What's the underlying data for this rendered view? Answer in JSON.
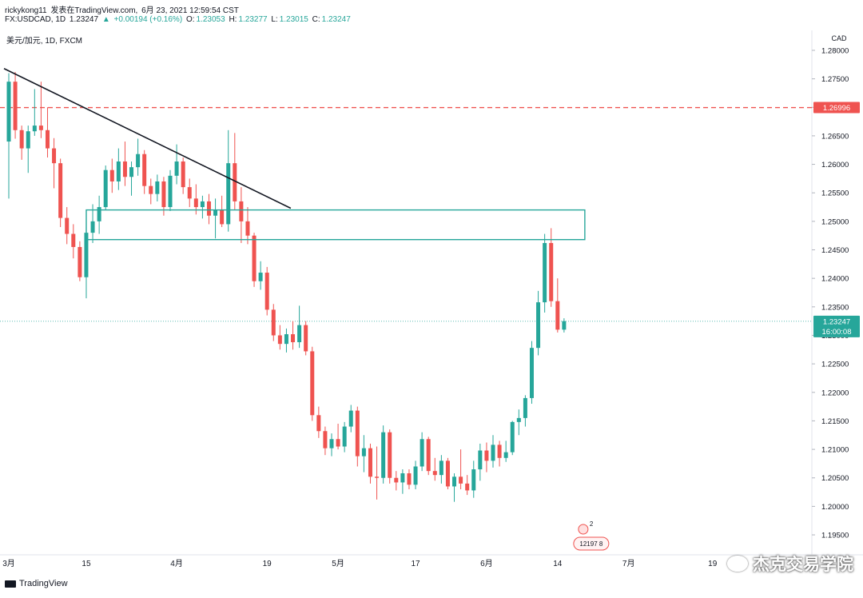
{
  "header": {
    "author": "rickykong11",
    "published_on": "发表在TradingView.com,",
    "date": "6月 23, 2021 12:59:54 CST"
  },
  "ohlc": {
    "symbol": "FX:USDCAD, 1D",
    "last": "1.23247",
    "arrow": "▲",
    "change": "+0.00194 (+0.16%)",
    "o_label": "O:",
    "o": "1.23053",
    "h_label": "H:",
    "h": "1.23277",
    "l_label": "L:",
    "l": "1.23015",
    "c_label": "C:",
    "c": "1.23247"
  },
  "legend": {
    "name": "美元/加元, 1D, FXCM"
  },
  "bottom": {
    "tradingview_logo": "TradingView",
    "brand_watermark": "杰克交易学院"
  },
  "colors": {
    "up": "#26a69a",
    "down": "#ef5350",
    "resistance_line": "#ef5350",
    "zone_border": "#26a69a",
    "trendline": "#131722"
  },
  "chart_data": {
    "type": "candlestick",
    "currency": "CAD",
    "y_range": [
      1.1915,
      1.2835
    ],
    "y_ticks": [
      "1.28000",
      "1.27500",
      "1.27000",
      "1.26500",
      "1.26000",
      "1.25500",
      "1.25000",
      "1.24500",
      "1.24000",
      "1.23500",
      "1.23000",
      "1.22500",
      "1.22000",
      "1.21500",
      "1.21000",
      "1.20500",
      "1.20000",
      "1.19500"
    ],
    "x_ticks": [
      {
        "index": 0,
        "label": "3月"
      },
      {
        "index": 12,
        "label": "15"
      },
      {
        "index": 26,
        "label": "4月"
      },
      {
        "index": 40,
        "label": "19"
      },
      {
        "index": 51,
        "label": "5月"
      },
      {
        "index": 63,
        "label": "17"
      },
      {
        "index": 74,
        "label": "6月"
      },
      {
        "index": 85,
        "label": "14"
      },
      {
        "index": 96,
        "label": "7月"
      },
      {
        "index": 109,
        "label": "19"
      }
    ],
    "candles": [
      {
        "o": 1.264,
        "h": 1.276,
        "l": 1.254,
        "c": 1.2745
      },
      {
        "o": 1.2745,
        "h": 1.2762,
        "l": 1.2645,
        "c": 1.266
      },
      {
        "o": 1.266,
        "h": 1.2668,
        "l": 1.2608,
        "c": 1.2628
      },
      {
        "o": 1.2628,
        "h": 1.2668,
        "l": 1.2585,
        "c": 1.2658
      },
      {
        "o": 1.2658,
        "h": 1.2732,
        "l": 1.265,
        "c": 1.2668
      },
      {
        "o": 1.2668,
        "h": 1.2745,
        "l": 1.2646,
        "c": 1.266
      },
      {
        "o": 1.266,
        "h": 1.27,
        "l": 1.2612,
        "c": 1.2628
      },
      {
        "o": 1.2628,
        "h": 1.2646,
        "l": 1.2558,
        "c": 1.2602
      },
      {
        "o": 1.2602,
        "h": 1.261,
        "l": 1.249,
        "c": 1.2506
      },
      {
        "o": 1.2506,
        "h": 1.2525,
        "l": 1.246,
        "c": 1.2478
      },
      {
        "o": 1.2478,
        "h": 1.2495,
        "l": 1.2435,
        "c": 1.2455
      },
      {
        "o": 1.2455,
        "h": 1.2465,
        "l": 1.2395,
        "c": 1.2402
      },
      {
        "o": 1.2402,
        "h": 1.249,
        "l": 1.2365,
        "c": 1.248
      },
      {
        "o": 1.248,
        "h": 1.253,
        "l": 1.2462,
        "c": 1.25
      },
      {
        "o": 1.25,
        "h": 1.2545,
        "l": 1.2478,
        "c": 1.2525
      },
      {
        "o": 1.2525,
        "h": 1.2598,
        "l": 1.252,
        "c": 1.259
      },
      {
        "o": 1.259,
        "h": 1.261,
        "l": 1.255,
        "c": 1.257
      },
      {
        "o": 1.257,
        "h": 1.2628,
        "l": 1.2555,
        "c": 1.2605
      },
      {
        "o": 1.2605,
        "h": 1.264,
        "l": 1.2562,
        "c": 1.2578
      },
      {
        "o": 1.2578,
        "h": 1.2605,
        "l": 1.2545,
        "c": 1.2595
      },
      {
        "o": 1.2595,
        "h": 1.2645,
        "l": 1.258,
        "c": 1.2618
      },
      {
        "o": 1.2618,
        "h": 1.2625,
        "l": 1.2548,
        "c": 1.2562
      },
      {
        "o": 1.2562,
        "h": 1.2575,
        "l": 1.253,
        "c": 1.2548
      },
      {
        "o": 1.2548,
        "h": 1.2582,
        "l": 1.2535,
        "c": 1.257
      },
      {
        "o": 1.257,
        "h": 1.2578,
        "l": 1.251,
        "c": 1.2525
      },
      {
        "o": 1.2525,
        "h": 1.259,
        "l": 1.2518,
        "c": 1.258
      },
      {
        "o": 1.258,
        "h": 1.2635,
        "l": 1.2565,
        "c": 1.2605
      },
      {
        "o": 1.2605,
        "h": 1.2612,
        "l": 1.2548,
        "c": 1.256
      },
      {
        "o": 1.256,
        "h": 1.2575,
        "l": 1.2525,
        "c": 1.254
      },
      {
        "o": 1.254,
        "h": 1.2565,
        "l": 1.2512,
        "c": 1.2525
      },
      {
        "o": 1.2525,
        "h": 1.2545,
        "l": 1.2505,
        "c": 1.2535
      },
      {
        "o": 1.2535,
        "h": 1.2548,
        "l": 1.2495,
        "c": 1.251
      },
      {
        "o": 1.251,
        "h": 1.254,
        "l": 1.247,
        "c": 1.252
      },
      {
        "o": 1.252,
        "h": 1.2545,
        "l": 1.249,
        "c": 1.2495
      },
      {
        "o": 1.2495,
        "h": 1.266,
        "l": 1.2482,
        "c": 1.2602
      },
      {
        "o": 1.2602,
        "h": 1.2655,
        "l": 1.252,
        "c": 1.2535
      },
      {
        "o": 1.2535,
        "h": 1.256,
        "l": 1.2462,
        "c": 1.25
      },
      {
        "o": 1.25,
        "h": 1.2525,
        "l": 1.246,
        "c": 1.2475
      },
      {
        "o": 1.2475,
        "h": 1.248,
        "l": 1.2385,
        "c": 1.2395
      },
      {
        "o": 1.2395,
        "h": 1.243,
        "l": 1.238,
        "c": 1.241
      },
      {
        "o": 1.241,
        "h": 1.242,
        "l": 1.2335,
        "c": 1.2345
      },
      {
        "o": 1.2345,
        "h": 1.2355,
        "l": 1.229,
        "c": 1.23
      },
      {
        "o": 1.23,
        "h": 1.2318,
        "l": 1.2275,
        "c": 1.2285
      },
      {
        "o": 1.2285,
        "h": 1.2312,
        "l": 1.227,
        "c": 1.2302
      },
      {
        "o": 1.2302,
        "h": 1.2325,
        "l": 1.2275,
        "c": 1.2288
      },
      {
        "o": 1.2288,
        "h": 1.2352,
        "l": 1.2278,
        "c": 1.2318
      },
      {
        "o": 1.2318,
        "h": 1.2325,
        "l": 1.2265,
        "c": 1.2272
      },
      {
        "o": 1.2272,
        "h": 1.228,
        "l": 1.215,
        "c": 1.216
      },
      {
        "o": 1.216,
        "h": 1.2175,
        "l": 1.212,
        "c": 1.2132
      },
      {
        "o": 1.2132,
        "h": 1.214,
        "l": 1.209,
        "c": 1.2102
      },
      {
        "o": 1.2102,
        "h": 1.2128,
        "l": 1.2088,
        "c": 1.2118
      },
      {
        "o": 1.2118,
        "h": 1.2145,
        "l": 1.21,
        "c": 1.2105
      },
      {
        "o": 1.2105,
        "h": 1.2148,
        "l": 1.2095,
        "c": 1.214
      },
      {
        "o": 1.214,
        "h": 1.2178,
        "l": 1.213,
        "c": 1.2168
      },
      {
        "o": 1.2168,
        "h": 1.2175,
        "l": 1.207,
        "c": 1.2088
      },
      {
        "o": 1.2088,
        "h": 1.2125,
        "l": 1.206,
        "c": 1.2102
      },
      {
        "o": 1.2102,
        "h": 1.211,
        "l": 1.204,
        "c": 1.2052
      },
      {
        "o": 1.2052,
        "h": 1.2105,
        "l": 1.2012,
        "c": 1.205
      },
      {
        "o": 1.205,
        "h": 1.2142,
        "l": 1.204,
        "c": 1.213
      },
      {
        "o": 1.213,
        "h": 1.2135,
        "l": 1.204,
        "c": 1.205
      },
      {
        "o": 1.205,
        "h": 1.2062,
        "l": 1.2028,
        "c": 1.2042
      },
      {
        "o": 1.2042,
        "h": 1.2065,
        "l": 1.2022,
        "c": 1.2058
      },
      {
        "o": 1.2058,
        "h": 1.2065,
        "l": 1.203,
        "c": 1.2038
      },
      {
        "o": 1.2038,
        "h": 1.208,
        "l": 1.203,
        "c": 1.207
      },
      {
        "o": 1.207,
        "h": 1.213,
        "l": 1.2062,
        "c": 1.2118
      },
      {
        "o": 1.2118,
        "h": 1.2122,
        "l": 1.2055,
        "c": 1.2062
      },
      {
        "o": 1.2062,
        "h": 1.2085,
        "l": 1.2045,
        "c": 1.2055
      },
      {
        "o": 1.2055,
        "h": 1.209,
        "l": 1.204,
        "c": 1.208
      },
      {
        "o": 1.208,
        "h": 1.2085,
        "l": 1.203,
        "c": 1.2035
      },
      {
        "o": 1.2035,
        "h": 1.2058,
        "l": 1.2008,
        "c": 1.2052
      },
      {
        "o": 1.2052,
        "h": 1.21,
        "l": 1.203,
        "c": 1.204
      },
      {
        "o": 1.204,
        "h": 1.2055,
        "l": 1.202,
        "c": 1.2028
      },
      {
        "o": 1.2028,
        "h": 1.208,
        "l": 1.2015,
        "c": 1.2065
      },
      {
        "o": 1.2065,
        "h": 1.211,
        "l": 1.2045,
        "c": 1.2098
      },
      {
        "o": 1.2098,
        "h": 1.2112,
        "l": 1.206,
        "c": 1.208
      },
      {
        "o": 1.208,
        "h": 1.2125,
        "l": 1.2068,
        "c": 1.2108
      },
      {
        "o": 1.2108,
        "h": 1.2115,
        "l": 1.207,
        "c": 1.2085
      },
      {
        "o": 1.2085,
        "h": 1.2115,
        "l": 1.2078,
        "c": 1.2095
      },
      {
        "o": 1.2095,
        "h": 1.215,
        "l": 1.209,
        "c": 1.2148
      },
      {
        "o": 1.2148,
        "h": 1.217,
        "l": 1.2125,
        "c": 1.2155
      },
      {
        "o": 1.2155,
        "h": 1.2195,
        "l": 1.214,
        "c": 1.219
      },
      {
        "o": 1.219,
        "h": 1.229,
        "l": 1.218,
        "c": 1.2278
      },
      {
        "o": 1.2278,
        "h": 1.2378,
        "l": 1.2265,
        "c": 1.2358
      },
      {
        "o": 1.2358,
        "h": 1.2478,
        "l": 1.234,
        "c": 1.2462
      },
      {
        "o": 1.2462,
        "h": 1.2488,
        "l": 1.235,
        "c": 1.236
      },
      {
        "o": 1.236,
        "h": 1.24,
        "l": 1.2305,
        "c": 1.231
      },
      {
        "o": 1.231,
        "h": 1.233,
        "l": 1.2305,
        "c": 1.2325
      }
    ],
    "horizontal_line": {
      "price": 1.26996,
      "label": "1.26996"
    },
    "zone": {
      "top": 1.252,
      "bottom": 1.2468,
      "start_index": 12,
      "end_index": 86
    },
    "trendline": {
      "start": {
        "index": 0,
        "price": 1.2768
      },
      "end": {
        "index": 36,
        "price": 1.253
      }
    },
    "last_price": {
      "price": 1.23247,
      "label": "1.23247",
      "countdown": "16:00:08"
    },
    "events": {
      "flag_count": "2",
      "event_label": "12197 8"
    }
  }
}
